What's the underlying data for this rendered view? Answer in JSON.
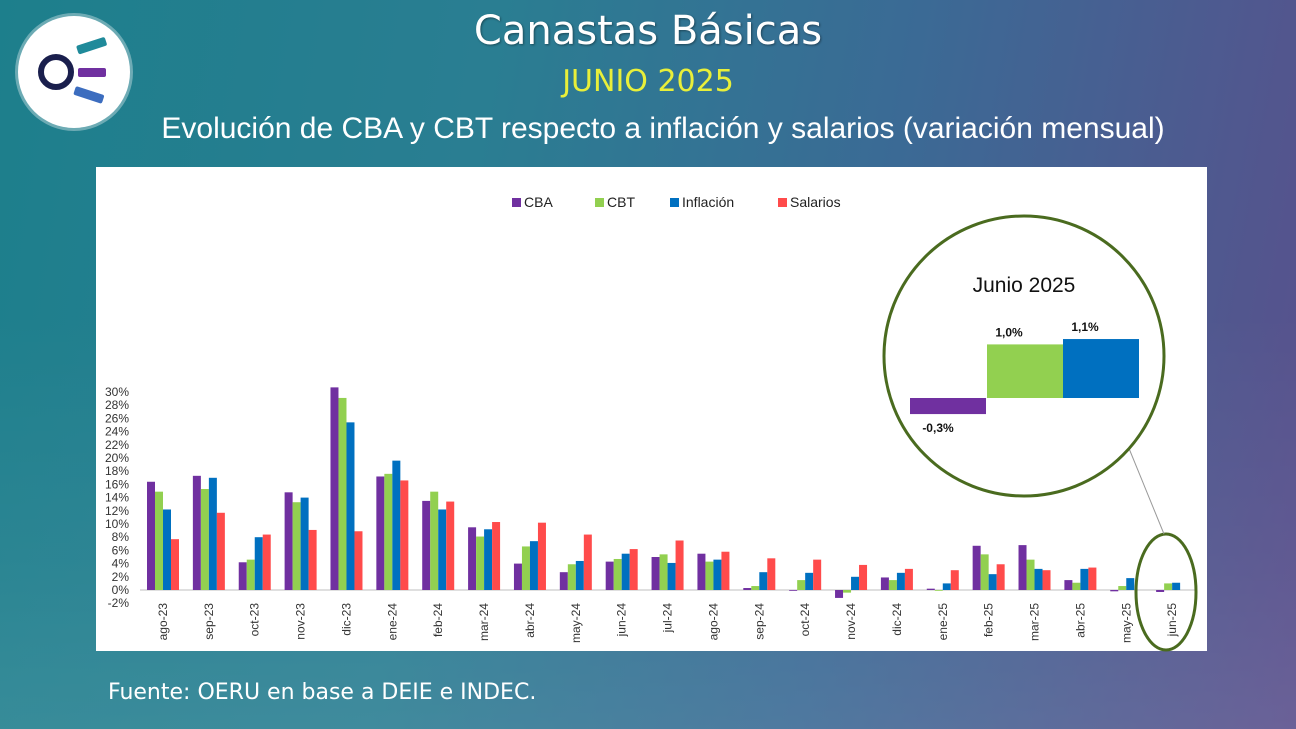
{
  "header": {
    "title": "Canastas Básicas",
    "subtitle": "JUNIO 2025",
    "heading": "Evolución de CBA y CBT respecto a inflación y salarios (variación mensual)"
  },
  "footer": {
    "source": "Fuente: OERU en base a DEIE e INDEC."
  },
  "colors": {
    "CBA": "#7030a0",
    "CBT": "#92d050",
    "Inflación": "#0070c0",
    "Salarios": "#ff4b4b",
    "accent": "#e8ef3a",
    "callout_ring": "#4a6b1f"
  },
  "chart_data": [
    {
      "type": "bar",
      "categories": [
        "ago-23",
        "sep-23",
        "oct-23",
        "nov-23",
        "dic-23",
        "ene-24",
        "feb-24",
        "mar-24",
        "abr-24",
        "may-24",
        "jun-24",
        "jul-24",
        "ago-24",
        "sep-24",
        "oct-24",
        "nov-24",
        "dic-24",
        "ene-25",
        "feb-25",
        "mar-25",
        "abr-25",
        "may-25",
        "jun-25"
      ],
      "series": [
        {
          "name": "CBA",
          "values": [
            16.4,
            17.3,
            4.2,
            14.8,
            30.7,
            17.2,
            13.5,
            9.5,
            4.0,
            2.7,
            4.3,
            5.0,
            5.5,
            0.3,
            -0.1,
            -1.2,
            1.9,
            0.2,
            6.7,
            6.8,
            1.5,
            -0.2,
            -0.3
          ]
        },
        {
          "name": "CBT",
          "values": [
            14.9,
            15.3,
            4.6,
            13.3,
            29.1,
            17.6,
            14.9,
            8.1,
            6.6,
            3.9,
            4.7,
            5.4,
            4.3,
            0.6,
            1.5,
            -0.4,
            1.5,
            0.0,
            5.4,
            4.6,
            1.1,
            0.6,
            1.0
          ]
        },
        {
          "name": "Inflación",
          "values": [
            12.2,
            17.0,
            8.0,
            14.0,
            25.4,
            19.6,
            12.2,
            9.2,
            7.4,
            4.4,
            5.5,
            4.1,
            4.6,
            2.7,
            2.6,
            2.0,
            2.6,
            1.0,
            2.4,
            3.2,
            3.2,
            1.8,
            1.1
          ]
        },
        {
          "name": "Salarios",
          "values": [
            7.7,
            11.7,
            8.4,
            9.1,
            8.9,
            16.6,
            13.4,
            10.3,
            10.2,
            8.4,
            6.2,
            7.5,
            5.8,
            4.8,
            4.6,
            3.8,
            3.2,
            3.0,
            3.9,
            3.0,
            3.4,
            null,
            null
          ]
        }
      ],
      "ylim": [
        -2,
        31
      ],
      "yticks": [
        "-2%",
        "0%",
        "2%",
        "4%",
        "6%",
        "8%",
        "10%",
        "12%",
        "14%",
        "16%",
        "18%",
        "20%",
        "22%",
        "24%",
        "26%",
        "28%",
        "30%"
      ],
      "legend": [
        "CBA",
        "CBT",
        "Inflación",
        "Salarios"
      ],
      "legend_position": "top-center"
    },
    {
      "type": "bar",
      "title": "Junio 2025",
      "categories": [
        "CBA",
        "CBT",
        "Inflación"
      ],
      "values": [
        -0.3,
        1.0,
        1.1
      ],
      "data_labels": [
        "-0,3%",
        "1,0%",
        "1,1%"
      ]
    }
  ]
}
